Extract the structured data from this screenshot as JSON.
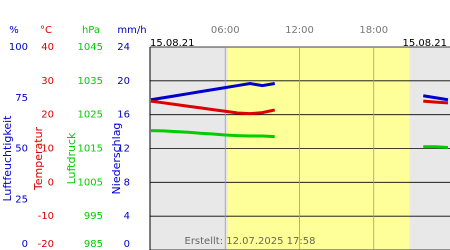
{
  "chart_data": {
    "type": "line",
    "date_start": "15.08.21",
    "date_end": "15.08.21",
    "created": "Erstellt: 12.07.2025 17:58",
    "xlim": [
      0,
      24
    ],
    "xticks": [
      {
        "value": 6,
        "label": "06:00"
      },
      {
        "value": 12,
        "label": "12:00"
      },
      {
        "value": 18,
        "label": "18:00"
      }
    ],
    "daylight": [
      6.2,
      20.9
    ],
    "grid": true,
    "axes": [
      {
        "unit": "%",
        "label": "Luftfeuchtigkeit",
        "color": "#0000cc",
        "ylim": [
          0,
          100
        ],
        "yticks": [
          0,
          25,
          50,
          75,
          100
        ]
      },
      {
        "unit": "°C",
        "label": "Temperatur",
        "color": "#dd0000",
        "ylim": [
          -20,
          40
        ],
        "yticks": [
          -20,
          -10,
          0,
          10,
          20,
          30,
          40
        ]
      },
      {
        "unit": "hPa",
        "label": "Luftdruck",
        "color": "#00cc00",
        "ylim": [
          985,
          1045
        ],
        "yticks": [
          985,
          995,
          1005,
          1015,
          1025,
          1035,
          1045
        ]
      },
      {
        "unit": "mm/h",
        "label": "Niederschlag",
        "color": "#0000cc",
        "ylim": [
          0,
          24
        ],
        "yticks": [
          0,
          4,
          8,
          12,
          16,
          20,
          24
        ]
      }
    ],
    "x": [
      0,
      1,
      2,
      3,
      4,
      5,
      6,
      7,
      8,
      9,
      10,
      11,
      12,
      13,
      14,
      15,
      16,
      17,
      18,
      19,
      20,
      21,
      22,
      23,
      24
    ],
    "series": [
      {
        "axis": 0,
        "color": "#0000cc",
        "values": [
          74,
          75,
          76,
          77,
          78,
          79,
          80,
          81,
          82,
          81,
          82,
          null,
          null,
          null,
          null,
          null,
          null,
          null,
          null,
          null,
          null,
          null,
          76,
          75,
          74
        ]
      },
      {
        "axis": 1,
        "color": "#dd0000",
        "values": [
          24,
          23.5,
          23,
          22.5,
          22,
          21.5,
          21,
          20.5,
          20.3,
          20.6,
          21.4,
          null,
          null,
          null,
          null,
          null,
          null,
          null,
          null,
          null,
          null,
          null,
          24,
          23.7,
          23.5
        ]
      },
      {
        "axis": 2,
        "color": "#00cc00",
        "values": [
          1020.3,
          1020.2,
          1020,
          1019.8,
          1019.5,
          1019.3,
          1019,
          1018.8,
          1018.7,
          1018.7,
          1018.5,
          null,
          null,
          null,
          null,
          null,
          null,
          null,
          null,
          null,
          null,
          null,
          1015.5,
          1015.5,
          1015.3
        ]
      }
    ]
  }
}
